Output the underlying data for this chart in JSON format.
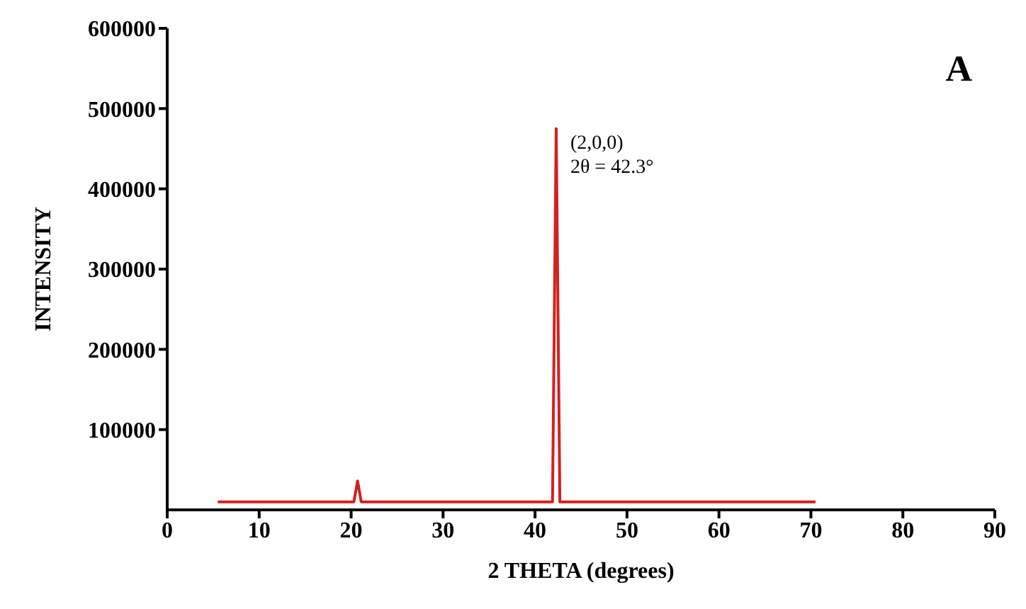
{
  "chart_data": {
    "type": "line",
    "xlabel": "2 THETA (degrees)",
    "ylabel": "INTENSITY",
    "annotations": [
      "A",
      {
        "text": "(2,0,0)\n2θ = 42.3°",
        "x": 42.3,
        "y": 475000
      }
    ],
    "series": [
      {
        "color": "#d42020",
        "x": [
          5.5,
          20.3,
          20.7,
          21.1,
          41.9,
          42.3,
          42.7,
          70.5
        ],
        "values": [
          10000,
          10000,
          36000,
          10000,
          10000,
          475000,
          10000,
          10000
        ]
      }
    ],
    "xlim": [
      0,
      90
    ],
    "xticks": [
      0,
      10,
      20,
      30,
      40,
      50,
      60,
      70,
      80,
      90
    ],
    "ylim": [
      0,
      600000
    ],
    "yticks": [
      100000,
      200000,
      300000,
      400000,
      500000,
      600000
    ],
    "grid": false,
    "marker": "none",
    "line_style": "solid"
  }
}
